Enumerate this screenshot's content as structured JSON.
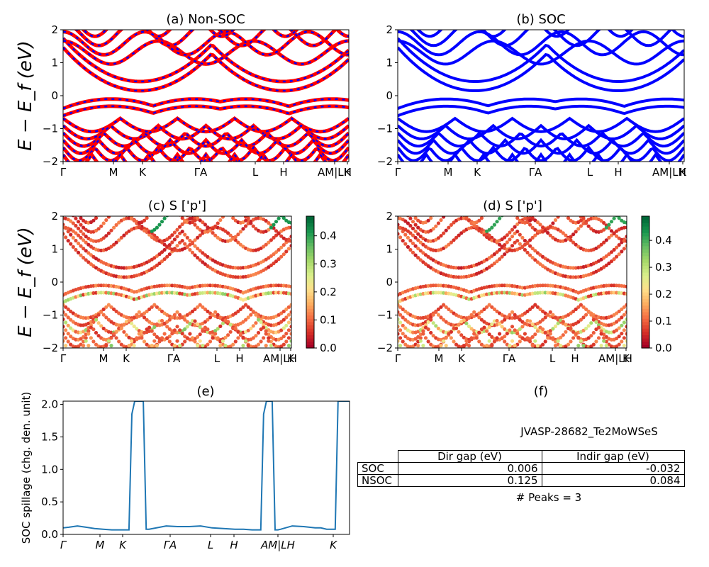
{
  "colors": {
    "nonsoc_a": "#ff0000",
    "nonsoc_b": "#0000ff",
    "soc": "#0000ff",
    "spillage_line": "#1f77b4",
    "cmap": [
      "#a50026",
      "#d73027",
      "#f46d43",
      "#fdae61",
      "#fee08b",
      "#d9ef8b",
      "#a6d96a",
      "#66bd63",
      "#1a9850",
      "#006837"
    ]
  },
  "chart_data": [
    {
      "id": "a",
      "type": "line",
      "title": "(a) Non-SOC",
      "ylabel": "E − E_f (eV)",
      "ylim": [
        -2,
        2
      ],
      "yticks": [
        "2",
        "1",
        "0",
        "−1",
        "−2"
      ],
      "xticks": [
        "Γ",
        "M",
        "K",
        "Γ",
        "A",
        "L",
        "H",
        "A",
        "M",
        "L",
        "H",
        "K"
      ],
      "xtick_labels": [
        "Γ",
        "M",
        "K",
        "ΓA",
        "L",
        "H",
        "AM|LH",
        "K"
      ]
    },
    {
      "id": "b",
      "type": "line",
      "title": "(b) SOC",
      "ylim": [
        -2,
        2
      ],
      "yticks": [
        "2",
        "1",
        "0",
        "−1",
        "−2"
      ],
      "xtick_labels": [
        "Γ",
        "M",
        "K",
        "ΓA",
        "L",
        "H",
        "AM|LH",
        "K"
      ]
    },
    {
      "id": "c",
      "type": "scatter",
      "title": "(c)  S ['p']",
      "ylabel": "E − E_f (eV)",
      "ylim": [
        -2,
        2
      ],
      "yticks": [
        "2",
        "1",
        "0",
        "−1",
        "−2"
      ],
      "colorbar_ticks": [
        "0.4",
        "0.3",
        "0.2",
        "0.1",
        "0.0"
      ],
      "colorbar_max": 0.47,
      "xtick_labels": [
        "Γ",
        "M",
        "K",
        "ΓA",
        "L",
        "H",
        "AM|LH",
        "K"
      ]
    },
    {
      "id": "d",
      "type": "scatter",
      "title": "(d) S ['p']",
      "ylim": [
        -2,
        2
      ],
      "yticks": [
        "2",
        "1",
        "0",
        "−1",
        "−2"
      ],
      "colorbar_ticks": [
        "0.4",
        "0.3",
        "0.2",
        "0.1",
        "0.0"
      ],
      "colorbar_max": 0.49,
      "xtick_labels": [
        "Γ",
        "M",
        "K",
        "ΓA",
        "L",
        "H",
        "AM|LH",
        "K"
      ]
    },
    {
      "id": "e",
      "type": "line",
      "title": "(e)",
      "ylabel": "SOC spillage (chg. den. unit)",
      "ylim": [
        0,
        2.05
      ],
      "yticks": [
        "2.0",
        "1.5",
        "1.0",
        "0.5",
        "0.0"
      ],
      "xtick_labels": [
        "Γ",
        "M",
        "K",
        "ΓA",
        "L",
        "H",
        "AM|LH",
        "K"
      ],
      "x": [
        0,
        0.02,
        0.05,
        0.08,
        0.11,
        0.14,
        0.17,
        0.2,
        0.23,
        0.24,
        0.25,
        0.26,
        0.27,
        0.28,
        0.29,
        0.3,
        0.36,
        0.4,
        0.44,
        0.48,
        0.52,
        0.56,
        0.6,
        0.63,
        0.66,
        0.69,
        0.7,
        0.71,
        0.72,
        0.73,
        0.74,
        0.75,
        0.76,
        0.8,
        0.84,
        0.88,
        0.9,
        0.92,
        0.95,
        0.96,
        0.97,
        1.0
      ],
      "y": [
        0.1,
        0.11,
        0.13,
        0.11,
        0.09,
        0.08,
        0.07,
        0.07,
        0.07,
        1.85,
        2.05,
        2.05,
        2.05,
        2.05,
        0.08,
        0.08,
        0.13,
        0.12,
        0.12,
        0.13,
        0.1,
        0.09,
        0.08,
        0.08,
        0.07,
        0.07,
        1.85,
        2.05,
        2.05,
        2.05,
        0.07,
        0.07,
        0.08,
        0.13,
        0.12,
        0.1,
        0.1,
        0.08,
        0.08,
        2.05,
        2.05,
        2.05
      ]
    }
  ],
  "panel_f": {
    "title": "(f)",
    "material": "JVASP-28682_Te2MoWSeS",
    "table": {
      "headers": [
        "Dir gap (eV)",
        "Indir gap (eV)"
      ],
      "rows": [
        {
          "label": "SOC",
          "dir": "0.006",
          "indir": "-0.032"
        },
        {
          "label": "NSOC",
          "dir": "0.125",
          "indir": "0.084"
        }
      ]
    },
    "peaks": "# Peaks = 3"
  }
}
